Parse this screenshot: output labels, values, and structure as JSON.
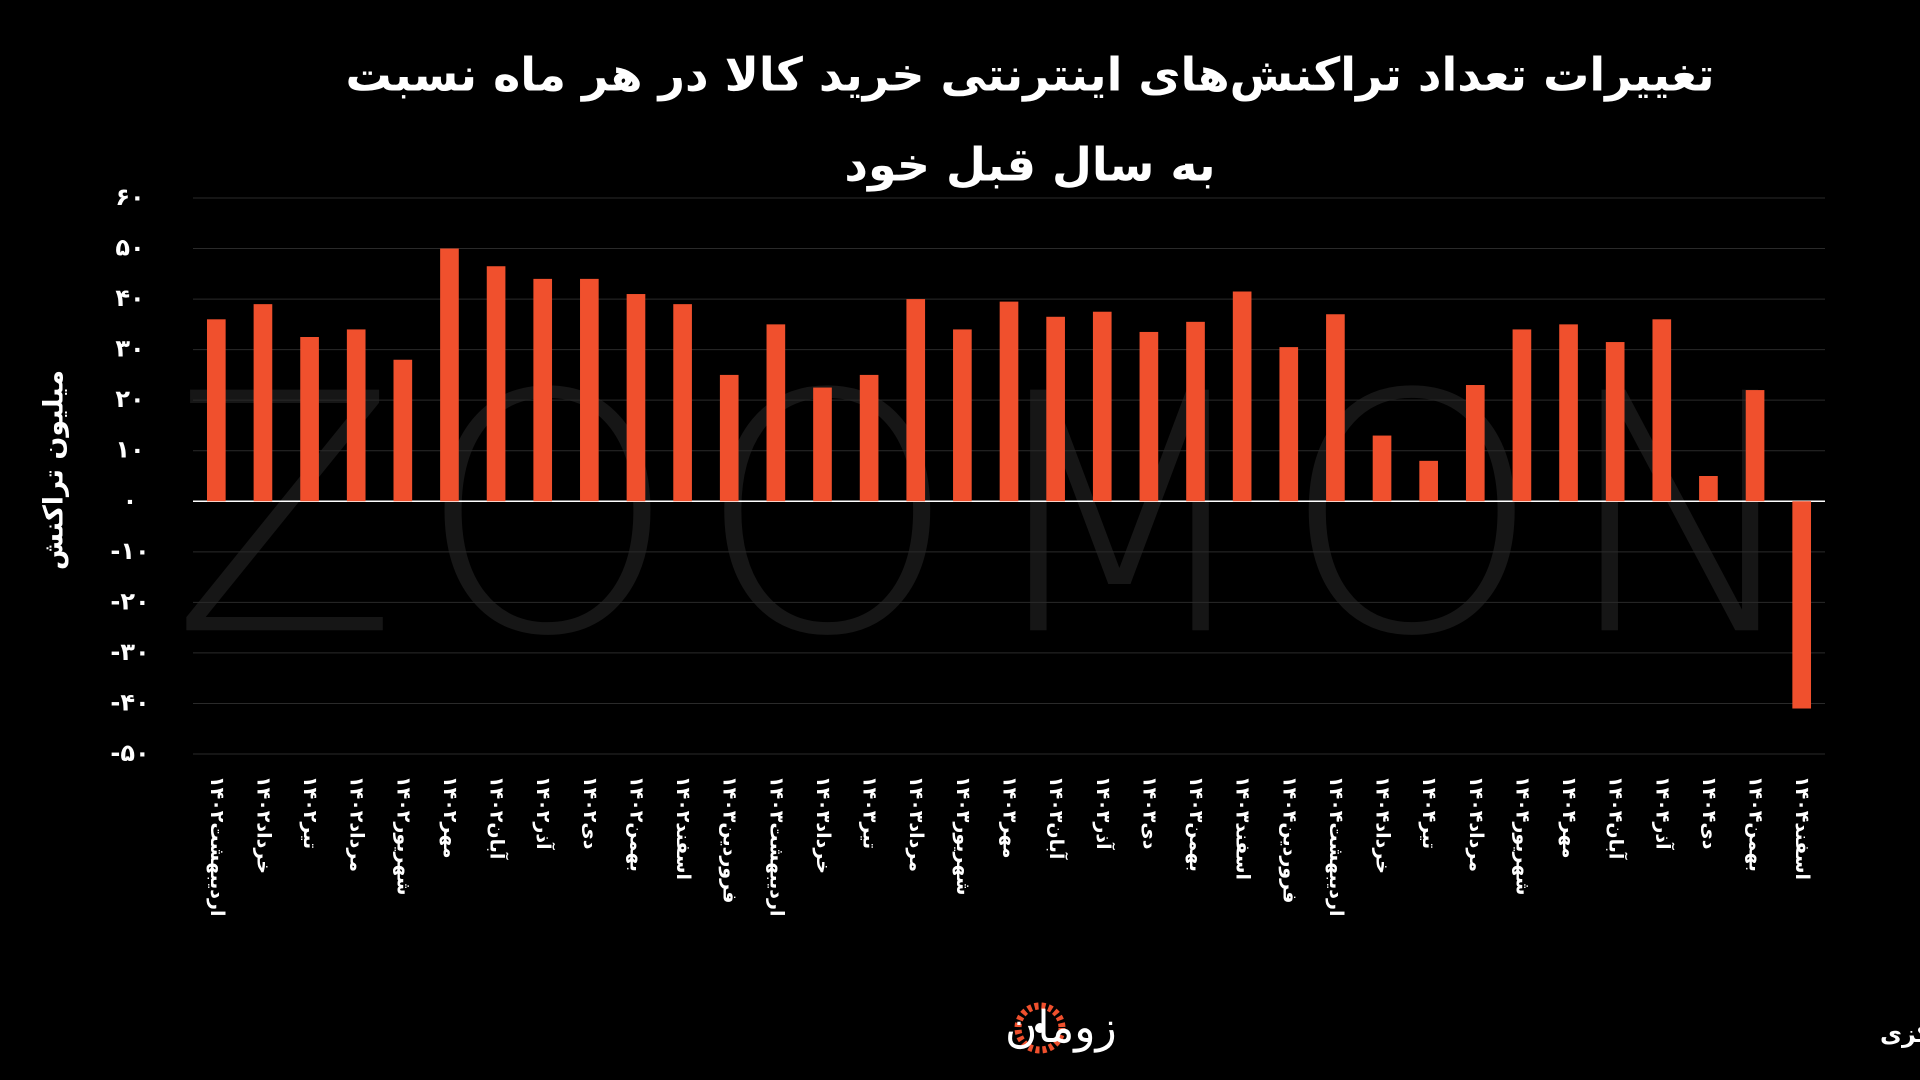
{
  "chart_data": {
    "type": "bar",
    "title": [
      "تغییرات تعداد تراکنش‌های اینترنتی خرید کالا در هر ماه نسبت",
      "به سال قبل خود"
    ],
    "y_axis_label": "میلیون تراکنش",
    "source": "منبع: آمارهای شاپرک بانک مرکزی",
    "logo": "زومان",
    "watermark": "ZOOMON",
    "color": "#f0502d",
    "grid": true,
    "categories": [
      "اردیبهشت۱۴۰۲",
      "خرداد۱۴۰۲",
      "تیر۱۴۰۲",
      "مرداد۱۴۰۲",
      "شهریور۱۴۰۲",
      "مهر۱۴۰۲",
      "آبان۱۴۰۲",
      "آذر۱۴۰۲",
      "دی۱۴۰۲",
      "بهمن۱۴۰۲",
      "اسفند۱۴۰۲",
      "فروردین۱۴۰۳",
      "اردیبهشت۱۴۰۳",
      "خرداد۱۴۰۳",
      "تیر۱۴۰۳",
      "مرداد۱۴۰۳",
      "شهریور۱۴۰۳",
      "مهر۱۴۰۳",
      "آبان۱۴۰۳",
      "آذر۱۴۰۳",
      "دی۱۴۰۳",
      "بهمن۱۴۰۳",
      "اسفند۱۴۰۳",
      "فروردین۱۴۰۴",
      "اردیبهشت۱۴۰۴",
      "خرداد۱۴۰۴",
      "تیر۱۴۰۴",
      "مرداد۱۴۰۴",
      "شهریور۱۴۰۴",
      "مهر۱۴۰۴",
      "آبان۱۴۰۴",
      "آذر۱۴۰۴",
      "دی۱۴۰۴",
      "بهمن۱۴۰۴",
      "اسفند۱۴۰۴"
    ],
    "values": [
      36,
      39,
      32.5,
      34,
      28,
      50,
      46.5,
      44,
      44,
      41,
      39,
      25,
      35,
      22.5,
      25,
      40,
      34,
      39.5,
      36.5,
      37.5,
      33.5,
      35.5,
      41.5,
      30.5,
      37,
      13,
      8,
      23,
      34,
      35,
      31.5,
      36,
      5,
      22,
      -41
    ],
    "ylim": [
      -50,
      60
    ],
    "yticks": [
      {
        "value": 60,
        "label": "۶۰"
      },
      {
        "value": 50,
        "label": "۵۰"
      },
      {
        "value": 40,
        "label": "۴۰"
      },
      {
        "value": 30,
        "label": "۳۰"
      },
      {
        "value": 20,
        "label": "۲۰"
      },
      {
        "value": 10,
        "label": "۱۰"
      },
      {
        "value": 0,
        "label": "۰"
      },
      {
        "value": -10,
        "label": "-۱۰"
      },
      {
        "value": -20,
        "label": "-۲۰"
      },
      {
        "value": -30,
        "label": "-۳۰"
      },
      {
        "value": -40,
        "label": "-۴۰"
      },
      {
        "value": -50,
        "label": "-۵۰"
      }
    ]
  }
}
